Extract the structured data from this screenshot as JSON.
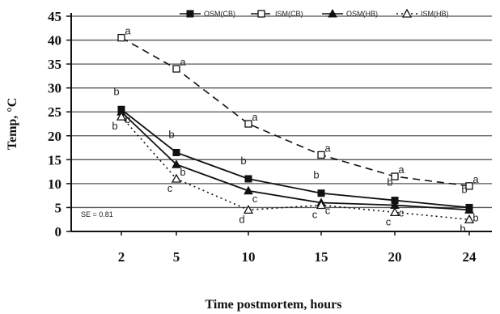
{
  "chart_data": {
    "type": "line",
    "xlabel": "Time postmortem, hours",
    "ylabel": "Temp, °C",
    "categories": [
      "2",
      "5",
      "10",
      "15",
      "20",
      "24"
    ],
    "ylim": [
      0,
      45
    ],
    "yticks": [
      "0",
      "5",
      "10",
      "15",
      "20",
      "25",
      "30",
      "35",
      "40",
      "45"
    ],
    "grid": true,
    "legend_position": "top",
    "annotation": "SE = 0.81",
    "series": [
      {
        "name": "OSM(CB)",
        "color": "#111111",
        "line": "solid",
        "marker": "square-filled",
        "values": [
          25.5,
          16.5,
          11,
          8,
          6.5,
          5
        ],
        "labels": [
          "b",
          "b",
          "b",
          "b",
          "b",
          "b"
        ]
      },
      {
        "name": "ISM(CB)",
        "color": "#111111",
        "line": "dashed",
        "marker": "square-open",
        "values": [
          40.5,
          34,
          22.5,
          16,
          11.5,
          9.5
        ],
        "labels": [
          "a",
          "a",
          "a",
          "a",
          "a",
          "a"
        ]
      },
      {
        "name": "OSM(HB)",
        "color": "#111111",
        "line": "solid",
        "marker": "triangle-filled",
        "values": [
          25,
          14,
          8.5,
          6,
          5.5,
          4.5
        ],
        "labels": [
          "b",
          "b",
          "c",
          "c",
          "c",
          "b"
        ]
      },
      {
        "name": "ISM(HB)",
        "color": "#111111",
        "line": "dotted",
        "marker": "triangle-open",
        "values": [
          24,
          11,
          4.5,
          5.5,
          4,
          2.5
        ],
        "labels": [
          "b",
          "c",
          "d",
          "c",
          "c",
          "b"
        ]
      }
    ]
  }
}
